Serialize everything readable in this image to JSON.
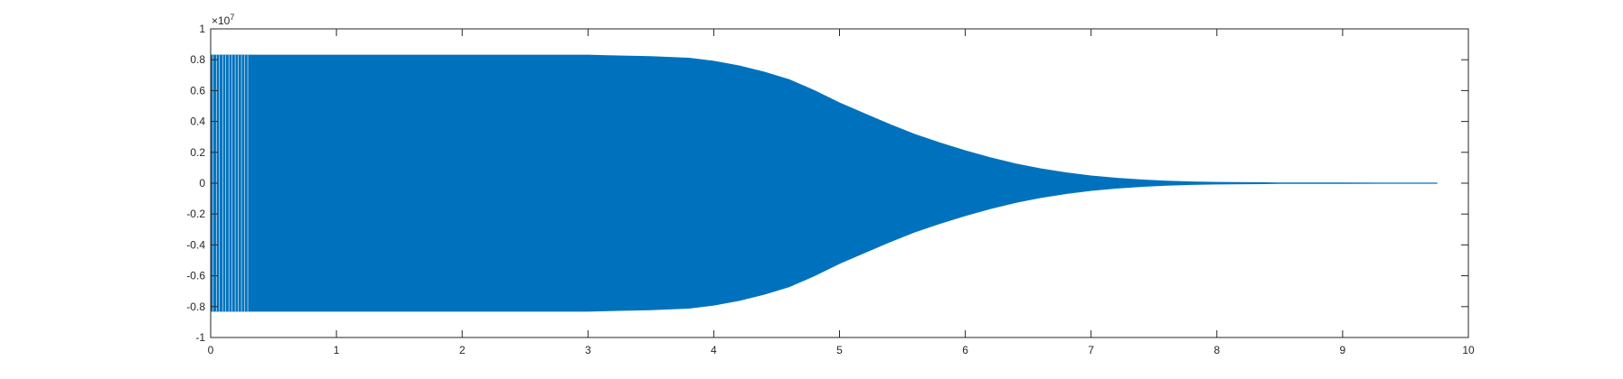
{
  "chart_data": {
    "type": "area",
    "title": "",
    "xlabel": "",
    "ylabel": "",
    "xlim": [
      0,
      10
    ],
    "ylim": [
      -1,
      1
    ],
    "y_exponent_label": "×10",
    "y_exponent_power": "7",
    "x_ticks": [
      "0",
      "1",
      "2",
      "3",
      "4",
      "5",
      "6",
      "7",
      "8",
      "9",
      "10"
    ],
    "y_ticks": [
      "-1",
      "-0.8",
      "-0.6",
      "-0.4",
      "-0.2",
      "0",
      "0.2",
      "0.4",
      "0.6",
      "0.8",
      "1"
    ],
    "grid": false,
    "legend": false,
    "series": [
      {
        "color": "#0072BD",
        "envelope_x": [
          0,
          0.05,
          0.3,
          1,
          2,
          2.5,
          3,
          3.2,
          3.5,
          3.8,
          4,
          4.2,
          4.4,
          4.6,
          4.8,
          5,
          5.2,
          5.4,
          5.6,
          5.8,
          6,
          6.2,
          6.4,
          6.6,
          6.8,
          7,
          7.2,
          7.4,
          7.6,
          7.8,
          8,
          8.5,
          9,
          9.5,
          9.75
        ],
        "envelope_upper": [
          0.83,
          0.83,
          0.83,
          0.83,
          0.83,
          0.83,
          0.83,
          0.825,
          0.82,
          0.81,
          0.79,
          0.76,
          0.72,
          0.67,
          0.6,
          0.52,
          0.45,
          0.38,
          0.315,
          0.26,
          0.21,
          0.165,
          0.125,
          0.093,
          0.067,
          0.047,
          0.032,
          0.021,
          0.013,
          0.008,
          0.005,
          0.002,
          0.001,
          0.0005,
          0.0003
        ],
        "envelope_lower": [
          -0.83,
          -0.83,
          -0.83,
          -0.83,
          -0.83,
          -0.83,
          -0.83,
          -0.825,
          -0.82,
          -0.81,
          -0.79,
          -0.76,
          -0.72,
          -0.67,
          -0.6,
          -0.52,
          -0.45,
          -0.38,
          -0.315,
          -0.26,
          -0.21,
          -0.165,
          -0.125,
          -0.093,
          -0.067,
          -0.047,
          -0.032,
          -0.021,
          -0.013,
          -0.008,
          -0.005,
          -0.002,
          -0.001,
          -0.0005,
          -0.0003
        ]
      }
    ]
  }
}
